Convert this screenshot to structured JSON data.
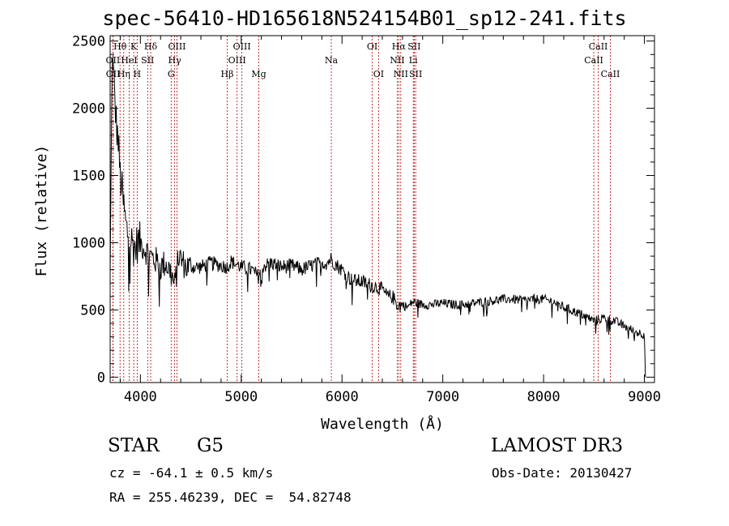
{
  "chart_data": {
    "type": "line",
    "title": "spec-56410-HD165618N524154B01_sp12-241.fits",
    "xlabel": "Wavelength (Å)",
    "ylabel": "Flux (relative)",
    "xlim": [
      3700,
      9100
    ],
    "ylim": [
      -40,
      2540
    ],
    "xticks": [
      4000,
      5000,
      6000,
      7000,
      8000,
      9000
    ],
    "yticks": [
      0,
      500,
      1000,
      1500,
      2000,
      2500
    ],
    "series": [
      {
        "name": "spectrum",
        "x": [
          3700,
          3720,
          3740,
          3760,
          3780,
          3800,
          3830,
          3860,
          3890,
          3920,
          3950,
          3970,
          4000,
          4050,
          4100,
          4150,
          4200,
          4250,
          4300,
          4340,
          4380,
          4450,
          4500,
          4600,
          4700,
          4800,
          4860,
          4900,
          5000,
          5100,
          5170,
          5200,
          5300,
          5400,
          5500,
          5600,
          5700,
          5800,
          5850,
          5890,
          5950,
          6000,
          6100,
          6200,
          6300,
          6350,
          6400,
          6450,
          6500,
          6560,
          6600,
          6650,
          6700,
          6800,
          6900,
          7000,
          7100,
          7200,
          7300,
          7400,
          7500,
          7600,
          7700,
          7800,
          7900,
          8000,
          8100,
          8200,
          8300,
          8400,
          8500,
          8600,
          8700,
          8800,
          8900,
          9000,
          9010
        ],
        "y": [
          700,
          2400,
          2150,
          1900,
          1750,
          1500,
          1300,
          1100,
          1050,
          1000,
          950,
          1000,
          1000,
          950,
          900,
          870,
          820,
          850,
          780,
          680,
          900,
          820,
          820,
          820,
          850,
          830,
          820,
          860,
          820,
          800,
          750,
          820,
          850,
          820,
          830,
          800,
          830,
          850,
          850,
          880,
          830,
          800,
          720,
          710,
          680,
          670,
          650,
          600,
          600,
          530,
          540,
          520,
          560,
          540,
          540,
          550,
          540,
          540,
          550,
          560,
          570,
          580,
          580,
          570,
          580,
          580,
          560,
          520,
          490,
          460,
          420,
          440,
          420,
          380,
          340,
          320,
          0
        ]
      }
    ],
    "lines": [
      {
        "label": "OII",
        "x": 3727,
        "row": 2
      },
      {
        "label": "OII",
        "x": 3729,
        "row": 3
      },
      {
        "label": "Hθ",
        "x": 3798,
        "row": 1
      },
      {
        "label": "Hη",
        "x": 3835,
        "row": 3
      },
      {
        "label": "HeI",
        "x": 3889,
        "row": 2
      },
      {
        "label": "K",
        "x": 3934,
        "row": 1
      },
      {
        "label": "H",
        "x": 3968,
        "row": 3
      },
      {
        "label": "SII",
        "x": 4072,
        "row": 2
      },
      {
        "label": "Hδ",
        "x": 4102,
        "row": 1
      },
      {
        "label": "G",
        "x": 4305,
        "row": 3
      },
      {
        "label": "Hγ",
        "x": 4340,
        "row": 2
      },
      {
        "label": "OIII",
        "x": 4363,
        "row": 1
      },
      {
        "label": "Hβ",
        "x": 4861,
        "row": 3
      },
      {
        "label": "OIII",
        "x": 4959,
        "row": 2
      },
      {
        "label": "OIII",
        "x": 5007,
        "row": 1
      },
      {
        "label": "Mg",
        "x": 5175,
        "row": 3
      },
      {
        "label": "Na",
        "x": 5894,
        "row": 2
      },
      {
        "label": "OI",
        "x": 6300,
        "row": 1
      },
      {
        "label": "OI",
        "x": 6363,
        "row": 3
      },
      {
        "label": "NII",
        "x": 6548,
        "row": 2
      },
      {
        "label": "Hα",
        "x": 6563,
        "row": 1
      },
      {
        "label": "NII",
        "x": 6583,
        "row": 3
      },
      {
        "label": "Li",
        "x": 6707,
        "row": 2
      },
      {
        "label": "SII",
        "x": 6716,
        "row": 1
      },
      {
        "label": "SII",
        "x": 6731,
        "row": 3
      },
      {
        "label": "CaII",
        "x": 8498,
        "row": 2
      },
      {
        "label": "CaII",
        "x": 8542,
        "row": 1
      },
      {
        "label": "CaII",
        "x": 8662,
        "row": 3
      }
    ]
  },
  "info": {
    "object_class": "STAR",
    "subclass": "G5",
    "survey": "LAMOST DR3",
    "cz": "cz = -64.1 ± 0.5 km/s",
    "obs_date": "Obs-Date: 20130427",
    "coords": "RA = 255.46239, DEC =  54.82748"
  },
  "colors": {
    "spectrum": "#000000",
    "line_marker": "#c00000",
    "axes": "#000000"
  }
}
